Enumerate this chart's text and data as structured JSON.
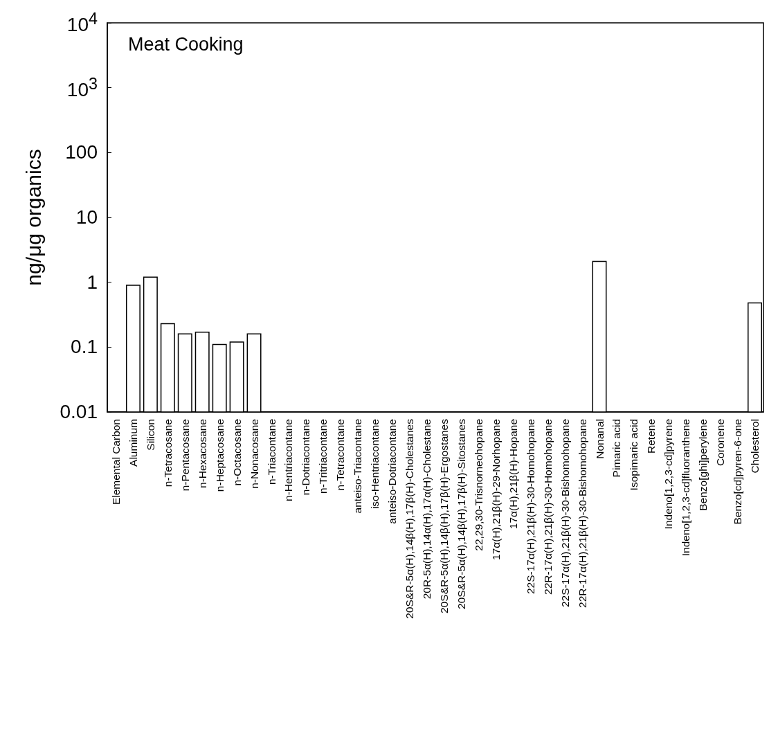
{
  "chart_data": {
    "type": "bar",
    "title": "Meat Cooking",
    "ylabel": "ng/μg organics",
    "categories": [
      "Elemental Carbon",
      "Aluminum",
      "Silicon",
      "n-Tetracosane",
      "n-Pentacosane",
      "n-Hexacosane",
      "n-Heptacosane",
      "n-Octacosane",
      "n-Nonacosane",
      "n-Triacontane",
      "n-Hentriacontane",
      "n-Dotriacontane",
      "n-Tritriacontane",
      "n-Tetracontane",
      "anteiso-Triacontane",
      "iso-Hentriacontane",
      "anteiso-Dotriacontane",
      "20S&R-5α(H),14β(H),17β(H)-Cholestanes",
      "20R-5α(H),14α(H),17α(H)-Cholestane",
      "20S&R-5α(H),14β(H),17β(H)-Ergostanes",
      "20S&R-5α(H),14β(H),17β(H)-Sitostanes",
      "22,29,30-Trisnorneohopane",
      "17α(H),21β(H)-29-Norhopane",
      "17α(H),21β(H)-Hopane",
      "22S-17α(H),21β(H)-30-Homohopane",
      "22R-17α(H),21β(H)-30-Homohopane",
      "22S-17α(H),21β(H)-30-Bishomohopane",
      "22R-17α(H),21β(H)-30-Bishomohopane",
      "Nonanal",
      "Pimaric acid",
      "Isopimaric acid",
      "Retene",
      "Indeno[1,2,3-cd]pyrene",
      "Indeno[1,2,3-cd]fluoranthene",
      "Benzo[ghi]perylene",
      "Coronene",
      "Benzo[cd]pyren-6-one",
      "Cholesterol"
    ],
    "values": [
      null,
      0.9,
      1.2,
      0.23,
      0.16,
      0.17,
      0.11,
      0.12,
      0.16,
      null,
      null,
      null,
      null,
      null,
      null,
      null,
      null,
      null,
      null,
      null,
      null,
      null,
      null,
      null,
      null,
      null,
      null,
      null,
      2.1,
      null,
      null,
      null,
      null,
      null,
      null,
      null,
      null,
      0.48
    ],
    "color": "#ffffff",
    "log": true,
    "ylim": [
      0.01,
      10000
    ],
    "yticks": [
      0.01,
      0.1,
      1,
      10,
      100,
      {
        "value": 1000,
        "label": "10$^{3}$"
      },
      {
        "value": 10000,
        "label": "10$^{4}$"
      }
    ]
  }
}
